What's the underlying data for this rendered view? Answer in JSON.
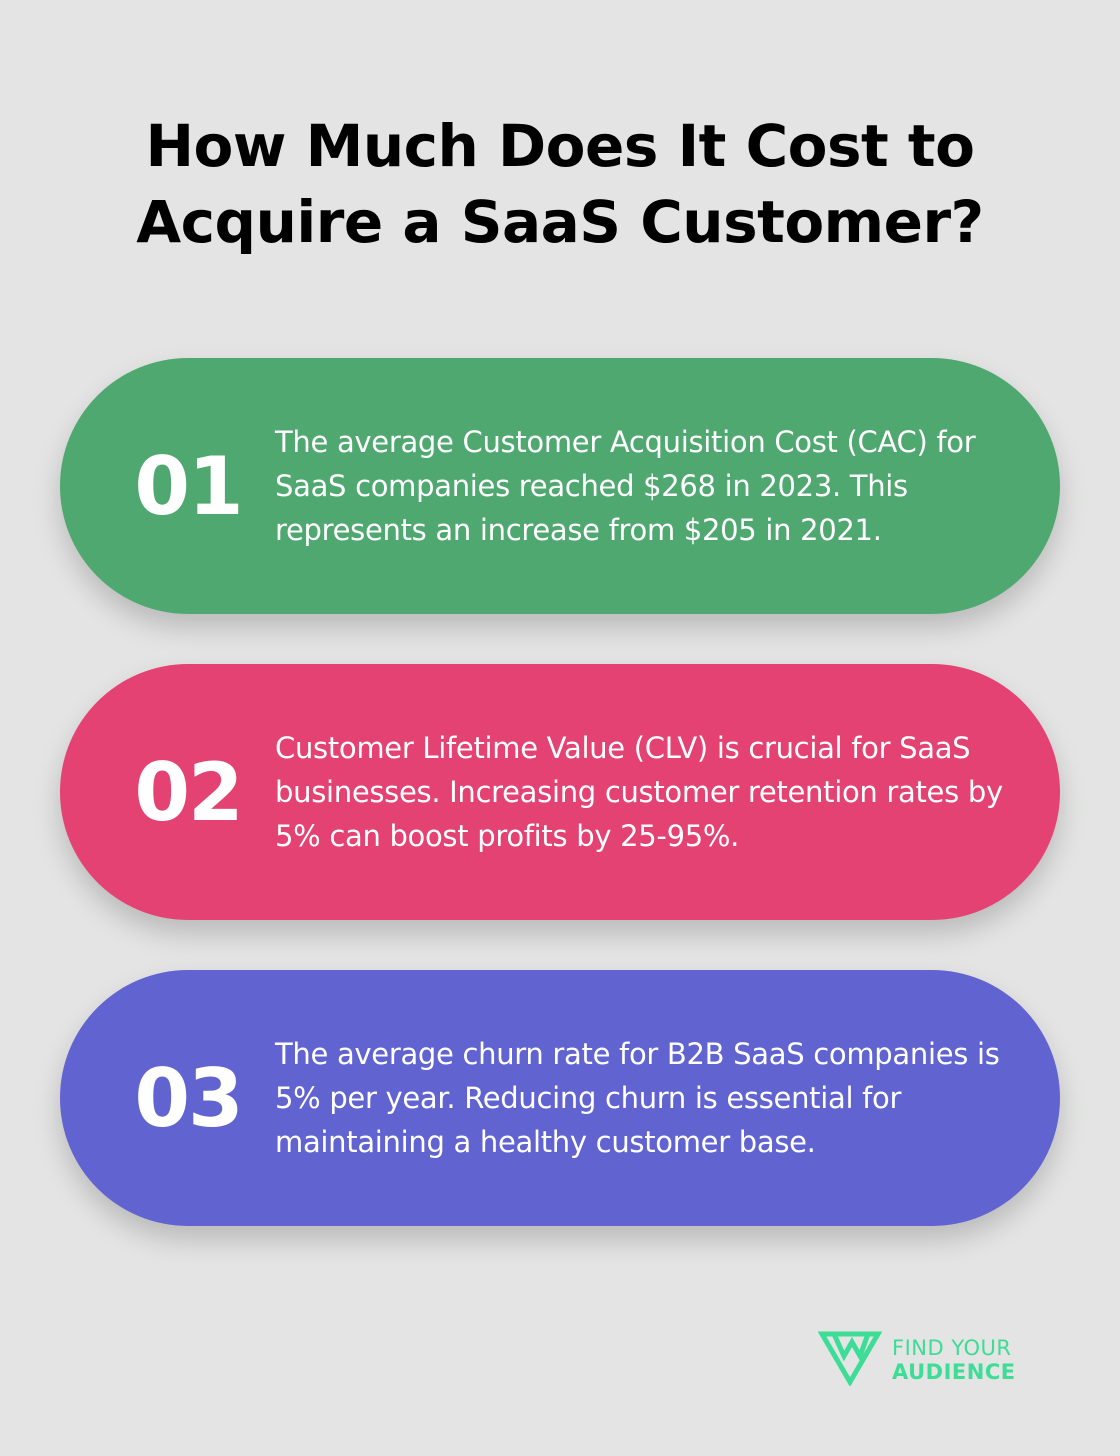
{
  "title": {
    "line1": "How Much Does It Cost to",
    "line2": "Acquire a SaaS Customer?"
  },
  "cards": [
    {
      "number": "01",
      "text": "The average Customer Acquisition Cost (CAC) for SaaS companies reached $268 in 2023. This represents an increase from $205 in 2021.",
      "color": "#4fa870"
    },
    {
      "number": "02",
      "text": "Customer Lifetime Value (CLV) is crucial for SaaS businesses. Increasing customer retention rates by 5% can boost profits by 25-95%.",
      "color": "#e34272"
    },
    {
      "number": "03",
      "text": "The average churn rate for B2B SaaS companies is 5% per year. Reducing churn is essential for maintaining a healthy customer base.",
      "color": "#6063d0"
    }
  ],
  "logo": {
    "line1": "FIND YOUR",
    "line2": "AUDIENCE",
    "icon": "find-your-audience-logo-icon",
    "color": "#3ddc97"
  },
  "colors": {
    "background": "#e3e4e3"
  }
}
